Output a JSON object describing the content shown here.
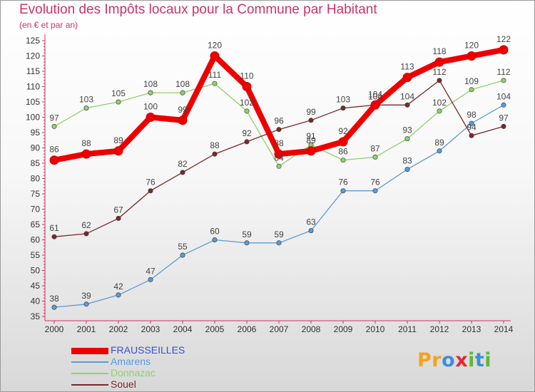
{
  "header": {
    "title": "Evolution des Impôts locaux pour la Commune par Habitant",
    "subtitle": "(en € et par an)"
  },
  "logo": {
    "text": "Proxiti",
    "letters": [
      {
        "ch": "P",
        "color": "#f7a21a"
      },
      {
        "ch": "r",
        "color": "#f7a21a"
      },
      {
        "ch": "o",
        "color": "#3b8fd8"
      },
      {
        "ch": "x",
        "color": "#e8262c"
      },
      {
        "ch": "i",
        "color": "#5db83a"
      },
      {
        "ch": "t",
        "color": "#3b8fd8"
      },
      {
        "ch": "i",
        "color": "#5db83a"
      }
    ]
  },
  "chart_data": {
    "type": "line",
    "title": "Evolution des Impôts locaux pour la Commune par Habitant",
    "subtitle": "(en € et par an)",
    "xlabel": "",
    "ylabel": "",
    "x": [
      "2000",
      "2001",
      "2002",
      "2003",
      "2004",
      "2005",
      "2006",
      "2007",
      "2008",
      "2009",
      "2010",
      "2011",
      "2012",
      "2013",
      "2014"
    ],
    "ylim": [
      35,
      125
    ],
    "yticks": [
      35,
      40,
      45,
      50,
      55,
      60,
      65,
      70,
      75,
      80,
      85,
      90,
      95,
      100,
      105,
      110,
      115,
      120,
      125
    ],
    "grid": false,
    "legend_position": "bottom-left",
    "series": [
      {
        "name": "FRAUSSEILLES",
        "color": "#ee0000",
        "bold": true,
        "values": [
          86,
          88,
          89,
          100,
          99,
          120,
          110,
          88,
          89,
          92,
          104,
          113,
          118,
          120,
          122
        ]
      },
      {
        "name": "Amarens",
        "color": "#5b9bd5",
        "bold": false,
        "values": [
          38,
          39,
          42,
          47,
          55,
          60,
          59,
          59,
          63,
          76,
          76,
          83,
          89,
          98,
          104
        ]
      },
      {
        "name": "Donnazac",
        "color": "#8fd16a",
        "bold": false,
        "values": [
          97,
          103,
          105,
          108,
          108,
          111,
          102,
          84,
          91,
          86,
          87,
          93,
          102,
          109,
          112
        ]
      },
      {
        "name": "Souel",
        "color": "#7a2a2a",
        "bold": false,
        "values": [
          61,
          62,
          67,
          76,
          82,
          88,
          92,
          96,
          99,
          103,
          104,
          104,
          112,
          94,
          97
        ]
      }
    ]
  }
}
